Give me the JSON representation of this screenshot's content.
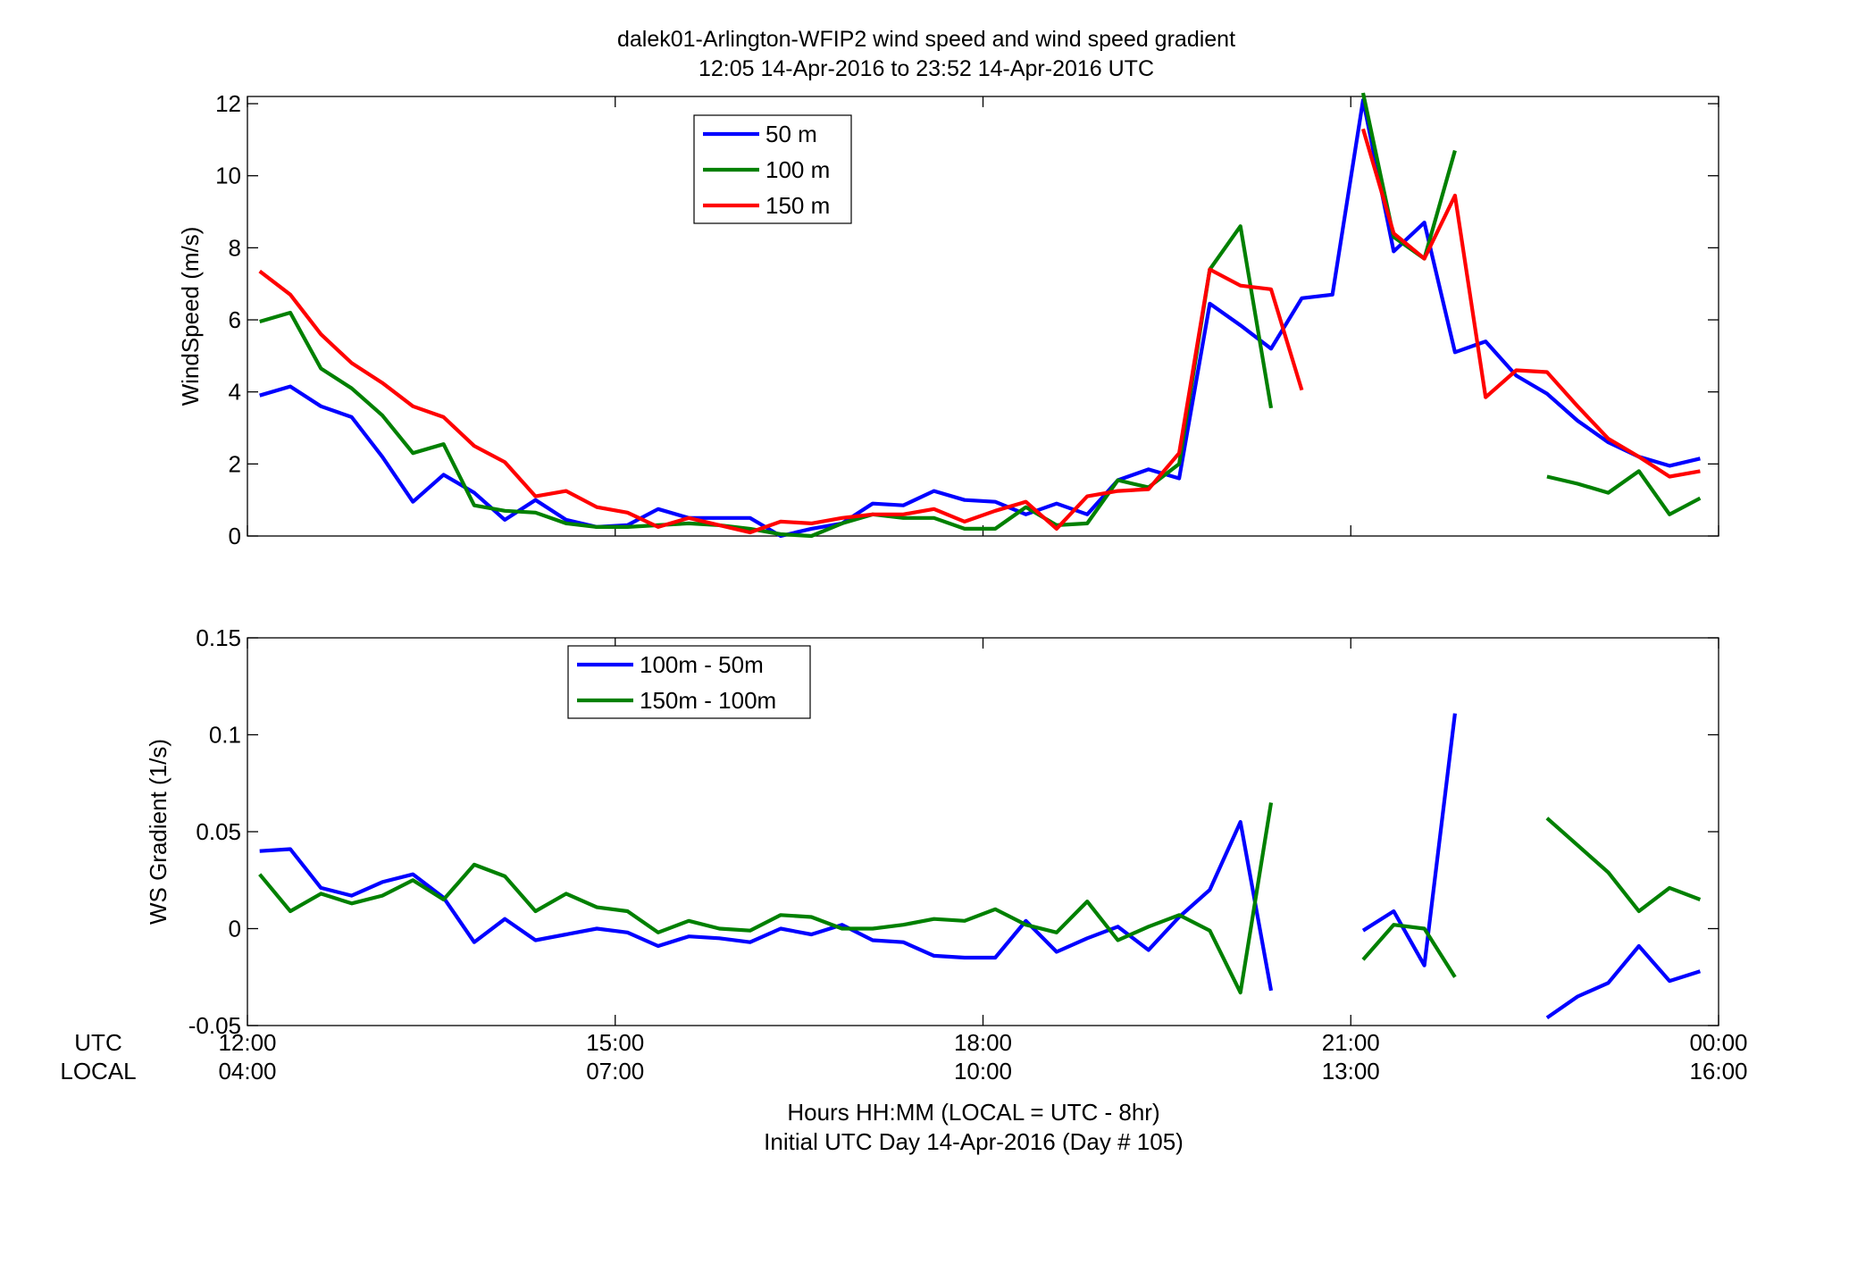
{
  "title_line1": "dalek01-Arlington-WFIP2  wind speed and wind speed gradient",
  "title_line2": "12:05 14-Apr-2016 to 23:52 14-Apr-2016  UTC",
  "xaxis": {
    "utc_label": "UTC",
    "local_label": "LOCAL",
    "utc_ticks": [
      "12:00",
      "15:00",
      "18:00",
      "21:00",
      "00:00"
    ],
    "local_ticks": [
      "04:00",
      "07:00",
      "10:00",
      "13:00",
      "16:00"
    ],
    "xlabel_line1": "Hours HH:MM  (LOCAL = UTC - 8hr)",
    "xlabel_line2": "Initial UTC Day 14-Apr-2016 (Day # 105)"
  },
  "colors": {
    "blue": "#0000ff",
    "green": "#008000",
    "red": "#ff0000"
  },
  "chart_data": [
    {
      "type": "line",
      "ylabel": "WindSpeed (m/s)",
      "xlim": [
        12,
        24
      ],
      "ylim": [
        0,
        12.2
      ],
      "yticks": [
        "0",
        "2",
        "4",
        "6",
        "8",
        "10",
        "12"
      ],
      "ytick_values": [
        0,
        2,
        4,
        6,
        8,
        10,
        12
      ],
      "legend_position": "upper-left",
      "x": [
        12.1,
        12.35,
        12.6,
        12.85,
        13.1,
        13.35,
        13.6,
        13.85,
        14.1,
        14.35,
        14.6,
        14.85,
        15.1,
        15.35,
        15.6,
        15.85,
        16.1,
        16.35,
        16.6,
        16.85,
        17.1,
        17.35,
        17.6,
        17.85,
        18.1,
        18.35,
        18.6,
        18.85,
        19.1,
        19.35,
        19.6,
        19.85,
        20.1,
        20.35,
        20.6,
        20.85,
        21.1,
        21.35,
        21.6,
        21.85,
        22.1,
        22.35,
        22.6,
        22.85,
        23.1,
        23.35,
        23.6,
        23.85
      ],
      "series": [
        {
          "name": "50 m",
          "color": "#0000ff",
          "values": [
            3.9,
            4.15,
            3.6,
            3.3,
            2.2,
            0.95,
            1.7,
            1.2,
            0.45,
            1.0,
            0.45,
            0.25,
            0.3,
            0.75,
            0.5,
            0.5,
            0.5,
            0.0,
            0.2,
            0.35,
            0.9,
            0.85,
            1.25,
            1.0,
            0.95,
            0.6,
            0.9,
            0.6,
            1.55,
            1.85,
            1.6,
            6.45,
            5.85,
            5.2,
            6.6,
            6.7,
            12.1,
            7.9,
            8.7,
            5.1,
            5.4,
            4.45,
            3.95,
            3.2,
            2.6,
            2.2,
            1.95,
            2.15
          ]
        },
        {
          "name": "100 m",
          "color": "#008000",
          "values": [
            5.95,
            6.2,
            4.65,
            4.1,
            3.35,
            2.3,
            2.55,
            0.85,
            0.7,
            0.65,
            0.35,
            0.25,
            0.25,
            0.3,
            0.35,
            0.3,
            0.2,
            0.05,
            0.0,
            0.35,
            0.6,
            0.5,
            0.5,
            0.2,
            0.2,
            0.8,
            0.3,
            0.35,
            1.55,
            1.35,
            2.0,
            7.4,
            8.6,
            3.55,
            null,
            null,
            12.3,
            8.3,
            7.7,
            10.7,
            null,
            null,
            1.65,
            1.45,
            1.2,
            1.8,
            0.6,
            1.05
          ]
        },
        {
          "name": "150 m",
          "color": "#ff0000",
          "values": [
            7.35,
            6.7,
            5.6,
            4.8,
            4.25,
            3.6,
            3.3,
            2.5,
            2.05,
            1.1,
            1.25,
            0.8,
            0.65,
            0.25,
            0.5,
            0.3,
            0.1,
            0.4,
            0.35,
            0.5,
            0.6,
            0.6,
            0.75,
            0.4,
            0.7,
            0.95,
            0.2,
            1.1,
            1.25,
            1.3,
            2.3,
            7.4,
            6.95,
            6.85,
            4.05,
            null,
            11.3,
            8.4,
            7.7,
            9.45,
            3.85,
            4.6,
            4.55,
            3.6,
            2.7,
            2.2,
            1.65,
            1.8
          ]
        }
      ]
    },
    {
      "type": "line",
      "ylabel": "WS Gradient (1/s)",
      "xlim": [
        12,
        24
      ],
      "ylim": [
        -0.05,
        0.15
      ],
      "yticks": [
        "-0.05",
        "0",
        "0.05",
        "0.1",
        "0.15"
      ],
      "ytick_values": [
        -0.05,
        0,
        0.05,
        0.1,
        0.15
      ],
      "legend_position": "upper-left",
      "x": [
        12.1,
        12.35,
        12.6,
        12.85,
        13.1,
        13.35,
        13.6,
        13.85,
        14.1,
        14.35,
        14.6,
        14.85,
        15.1,
        15.35,
        15.6,
        15.85,
        16.1,
        16.35,
        16.6,
        16.85,
        17.1,
        17.35,
        17.6,
        17.85,
        18.1,
        18.35,
        18.6,
        18.85,
        19.1,
        19.35,
        19.6,
        19.85,
        20.1,
        20.35,
        20.6,
        20.85,
        21.1,
        21.35,
        21.6,
        21.85,
        22.1,
        22.35,
        22.6,
        22.85,
        23.1,
        23.35,
        23.6,
        23.85
      ],
      "series": [
        {
          "name": "100m - 50m",
          "color": "#0000ff",
          "values": [
            0.04,
            0.041,
            0.021,
            0.017,
            0.024,
            0.028,
            0.016,
            -0.007,
            0.005,
            -0.006,
            -0.003,
            0.0,
            -0.002,
            -0.009,
            -0.004,
            -0.005,
            -0.007,
            0.0,
            -0.003,
            0.002,
            -0.006,
            -0.007,
            -0.014,
            -0.015,
            -0.015,
            0.004,
            -0.012,
            -0.005,
            0.001,
            -0.011,
            0.006,
            0.02,
            0.055,
            -0.032,
            null,
            null,
            -0.001,
            0.009,
            -0.019,
            0.111,
            null,
            null,
            -0.046,
            -0.035,
            -0.028,
            -0.009,
            -0.027,
            -0.022
          ]
        },
        {
          "name": "150m - 100m",
          "color": "#008000",
          "values": [
            0.028,
            0.009,
            0.018,
            0.013,
            0.017,
            0.025,
            0.015,
            0.033,
            0.027,
            0.009,
            0.018,
            0.011,
            0.009,
            -0.002,
            0.004,
            0.0,
            -0.001,
            0.007,
            0.006,
            0.0,
            0.0,
            0.002,
            0.005,
            0.004,
            0.01,
            0.002,
            -0.002,
            0.014,
            -0.006,
            0.001,
            0.007,
            -0.001,
            -0.033,
            0.065,
            null,
            null,
            -0.016,
            0.002,
            0.0,
            -0.025,
            null,
            null,
            0.057,
            0.043,
            0.029,
            0.009,
            0.021,
            0.015
          ]
        }
      ]
    }
  ]
}
